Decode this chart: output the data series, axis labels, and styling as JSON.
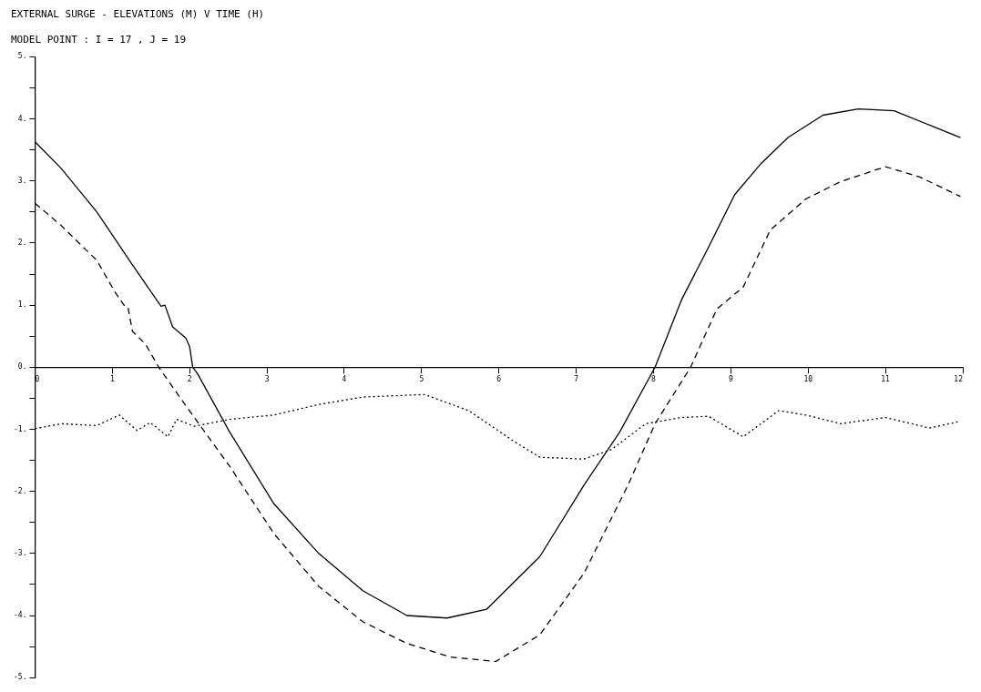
{
  "chart_data": {
    "type": "line",
    "title": "EXTERNAL SURGE - ELEVATIONS (M) V TIME (H)",
    "subtitle": "MODEL POINT : I = 17 , J = 19",
    "xlim": [
      0,
      12
    ],
    "xticks": [
      0,
      1,
      2,
      3,
      4,
      5,
      6,
      7,
      8,
      9,
      10,
      11,
      12
    ],
    "ylim": [
      -5,
      5
    ],
    "yticks": [
      {
        "value": -5,
        "label": "-5."
      },
      {
        "value": -4.5,
        "label": null
      },
      {
        "value": -4,
        "label": "-4."
      },
      {
        "value": -3.5,
        "label": null
      },
      {
        "value": -3,
        "label": "-3."
      },
      {
        "value": -2.5,
        "label": null
      },
      {
        "value": -2,
        "label": "-2."
      },
      {
        "value": -1.5,
        "label": null
      },
      {
        "value": -1,
        "label": "-1."
      },
      {
        "value": -0.5,
        "label": null
      },
      {
        "value": 0,
        "label": "0."
      },
      {
        "value": 0.5,
        "label": null
      },
      {
        "value": 1,
        "label": "1."
      },
      {
        "value": 1.5,
        "label": null
      },
      {
        "value": 2,
        "label": "2."
      },
      {
        "value": 2.5,
        "label": null
      },
      {
        "value": 3,
        "label": "3."
      },
      {
        "value": 3.5,
        "label": null
      },
      {
        "value": 4,
        "label": "4."
      },
      {
        "value": 4.5,
        "label": null
      },
      {
        "value": 5,
        "label": "5."
      }
    ],
    "grid": false,
    "marker": "none",
    "series": [
      {
        "color": "#000000",
        "line_style": "solid",
        "x": [
          0,
          0.34,
          0.8,
          1.26,
          1.63,
          1.68,
          1.78,
          1.95,
          2.0,
          2.04,
          2.1,
          2.52,
          3.09,
          3.67,
          4.24,
          4.81,
          5.33,
          5.84,
          6.53,
          7.1,
          7.56,
          8.02,
          8.36,
          8.71,
          9.05,
          9.39,
          9.74,
          10.19,
          10.65,
          11.11,
          11.57,
          11.97
        ],
        "values": [
          3.63,
          3.2,
          2.5,
          1.65,
          0.98,
          1.0,
          0.65,
          0.47,
          0.33,
          0,
          -0.1,
          -1.05,
          -2.2,
          -3.0,
          -3.6,
          -4.0,
          -4.04,
          -3.9,
          -3.05,
          -1.9,
          -1.05,
          0,
          1.08,
          1.93,
          2.78,
          3.28,
          3.7,
          4.06,
          4.16,
          4.13,
          3.9,
          3.7
        ]
      },
      {
        "color": "#000000",
        "line_style": "dashed",
        "x": [
          0,
          0.34,
          0.8,
          1.03,
          1.15,
          1.2,
          1.26,
          1.43,
          1.6,
          1.95,
          2.52,
          3.09,
          3.67,
          4.24,
          4.81,
          5.38,
          5.96,
          6.53,
          7.1,
          7.67,
          8.02,
          8.48,
          8.82,
          9.16,
          9.51,
          9.97,
          10.42,
          11.0,
          11.45,
          11.97
        ],
        "values": [
          2.64,
          2.28,
          1.72,
          1.22,
          1.0,
          0.98,
          0.58,
          0.37,
          0,
          -0.62,
          -1.6,
          -2.68,
          -3.53,
          -4.1,
          -4.45,
          -4.67,
          -4.74,
          -4.31,
          -3.32,
          -1.9,
          -0.91,
          0,
          0.94,
          1.29,
          2.21,
          2.71,
          2.99,
          3.23,
          3.06,
          2.75
        ]
      },
      {
        "color": "#000000",
        "line_style": "dotted",
        "x": [
          0,
          0.34,
          0.8,
          1.09,
          1.32,
          1.49,
          1.72,
          1.83,
          2.06,
          2.52,
          3.09,
          3.67,
          4.24,
          5.04,
          5.61,
          6.19,
          6.53,
          7.1,
          7.45,
          7.9,
          8.36,
          8.71,
          9.16,
          9.62,
          9.97,
          10.42,
          11.0,
          11.57,
          11.97
        ],
        "values": [
          -0.99,
          -0.91,
          -0.94,
          -0.77,
          -1.02,
          -0.89,
          -1.12,
          -0.84,
          -0.95,
          -0.84,
          -0.77,
          -0.6,
          -0.48,
          -0.44,
          -0.7,
          -1.19,
          -1.45,
          -1.48,
          -1.33,
          -0.91,
          -0.81,
          -0.79,
          -1.12,
          -0.7,
          -0.77,
          -0.91,
          -0.81,
          -0.98,
          -0.87
        ]
      }
    ]
  }
}
